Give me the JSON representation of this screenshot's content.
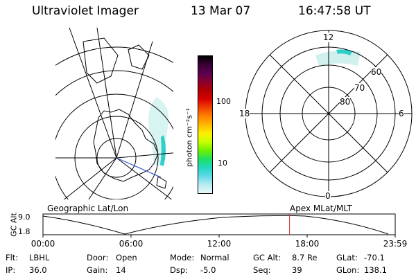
{
  "header": {
    "instrument": "Ultraviolet Imager",
    "date": "13 Mar 07",
    "time": "16:47:58 UT"
  },
  "colorbar": {
    "unit_label": "photon cm⁻²s⁻¹",
    "ticks": [
      "100",
      "10"
    ],
    "colors": [
      "#000000",
      "#3a0033",
      "#5a0050",
      "#8a0030",
      "#b00000",
      "#d80000",
      "#f04000",
      "#ff8000",
      "#ffb800",
      "#ffee00",
      "#c8ff00",
      "#70f000",
      "#20e060",
      "#20d8c0",
      "#60d8e8",
      "#b8ecf0",
      "#e8f8f8"
    ]
  },
  "polar_plot": {
    "mlt_labels": {
      "top": "12",
      "left": "18",
      "right": "6",
      "bottom": "0"
    },
    "lat_labels": [
      "60",
      "70",
      "80"
    ]
  },
  "timeline": {
    "left_title": "Geographic Lat/Lon",
    "right_title": "Apex MLat/MLT",
    "y_axis_label": "GC Alt",
    "y_ticks": [
      "9.0",
      "1.8"
    ],
    "x_ticks": [
      "00:00",
      "06:00",
      "12:00",
      "18:00",
      "23:59"
    ],
    "current_time_hours": 16.8
  },
  "info": {
    "row1": [
      {
        "label": "Flt:",
        "value": "LBHL"
      },
      {
        "label": "Door:",
        "value": "Open"
      },
      {
        "label": "Mode:",
        "value": "Normal"
      },
      {
        "label": "GC Alt:",
        "value": "8.7 Re"
      },
      {
        "label": "GLat:",
        "value": "-70.1"
      }
    ],
    "row2": [
      {
        "label": "IP:",
        "value": "36.0"
      },
      {
        "label": "Gain:",
        "value": "14"
      },
      {
        "label": "Dsp:",
        "value": "-5.0"
      },
      {
        "label": "Seq:",
        "value": "39"
      },
      {
        "label": "GLon:",
        "value": "138.1"
      }
    ]
  }
}
